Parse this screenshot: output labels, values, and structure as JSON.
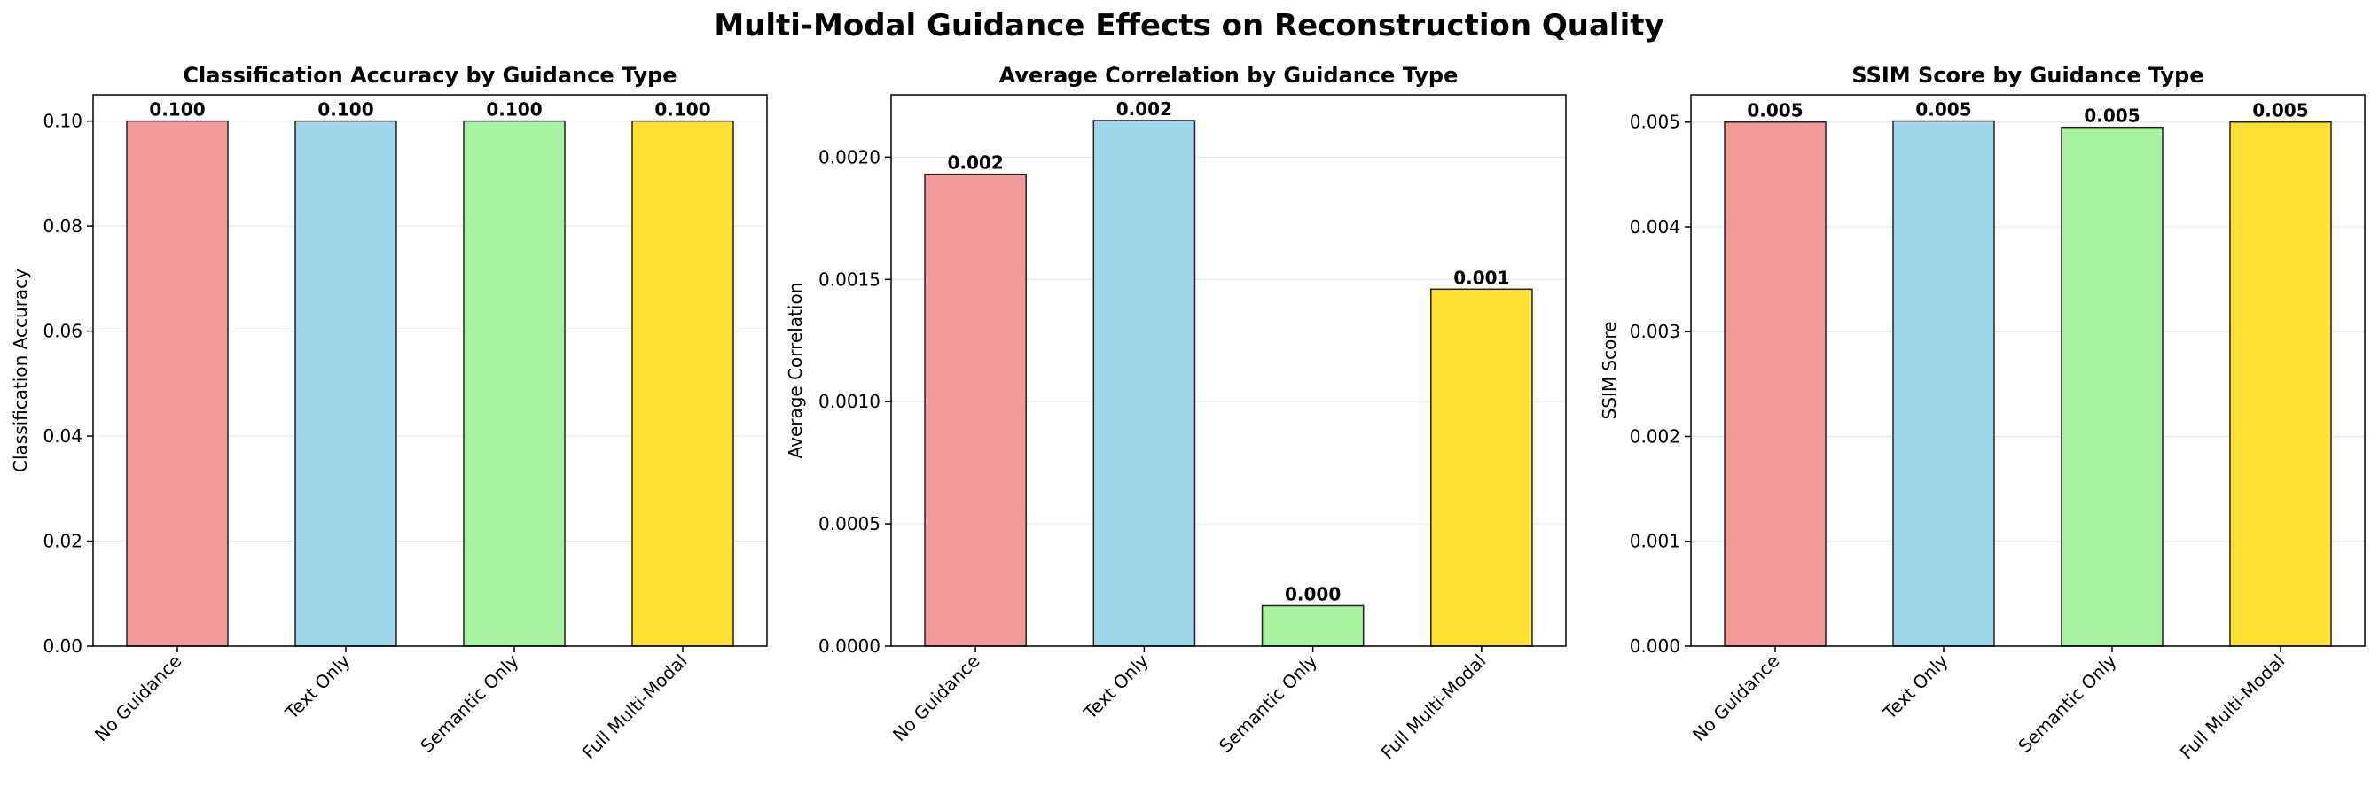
{
  "title": "Multi-Modal Guidance Effects on Reconstruction Quality",
  "chart_data": [
    {
      "type": "bar",
      "title": "Classification Accuracy by Guidance Type",
      "xlabel": "",
      "ylabel": "Classification Accuracy",
      "categories": [
        "No Guidance",
        "Text Only",
        "Semantic Only",
        "Full Multi-Modal"
      ],
      "values": [
        0.1,
        0.1,
        0.1,
        0.1
      ],
      "data_labels": [
        "0.100",
        "0.100",
        "0.100",
        "0.100"
      ],
      "colors": [
        "#f29a9a",
        "#a0d6ec",
        "#a6f2a0",
        "#ffdf33"
      ],
      "ylim": [
        0,
        0.105
      ],
      "yticks": [
        0.0,
        0.02,
        0.04,
        0.06,
        0.08,
        0.1
      ],
      "ytick_labels": [
        "0.00",
        "0.02",
        "0.04",
        "0.06",
        "0.08",
        "0.10"
      ],
      "grid": "y"
    },
    {
      "type": "bar",
      "title": "Average Correlation by Guidance Type",
      "xlabel": "",
      "ylabel": "Average Correlation",
      "categories": [
        "No Guidance",
        "Text Only",
        "Semantic Only",
        "Full Multi-Modal"
      ],
      "values": [
        0.00193,
        0.00215,
        0.000165,
        0.00146
      ],
      "data_labels": [
        "0.002",
        "0.002",
        "0.000",
        "0.001"
      ],
      "colors": [
        "#f29a9a",
        "#a0d6ec",
        "#a6f2a0",
        "#ffdf33"
      ],
      "ylim": [
        0,
        0.002255
      ],
      "yticks": [
        0.0,
        0.0005,
        0.001,
        0.0015,
        0.002
      ],
      "ytick_labels": [
        "0.0000",
        "0.0005",
        "0.0010",
        "0.0015",
        "0.0020"
      ],
      "grid": "y"
    },
    {
      "type": "bar",
      "title": "SSIM Score by Guidance Type",
      "xlabel": "",
      "ylabel": "SSIM Score",
      "categories": [
        "No Guidance",
        "Text Only",
        "Semantic Only",
        "Full Multi-Modal"
      ],
      "values": [
        0.005,
        0.00501,
        0.00495,
        0.005
      ],
      "data_labels": [
        "0.005",
        "0.005",
        "0.005",
        "0.005"
      ],
      "colors": [
        "#f29a9a",
        "#a0d6ec",
        "#a6f2a0",
        "#ffdf33"
      ],
      "ylim": [
        0,
        0.00526
      ],
      "yticks": [
        0.0,
        0.001,
        0.002,
        0.003,
        0.004,
        0.005
      ],
      "ytick_labels": [
        "0.000",
        "0.001",
        "0.002",
        "0.003",
        "0.004",
        "0.005"
      ],
      "grid": "y"
    }
  ]
}
